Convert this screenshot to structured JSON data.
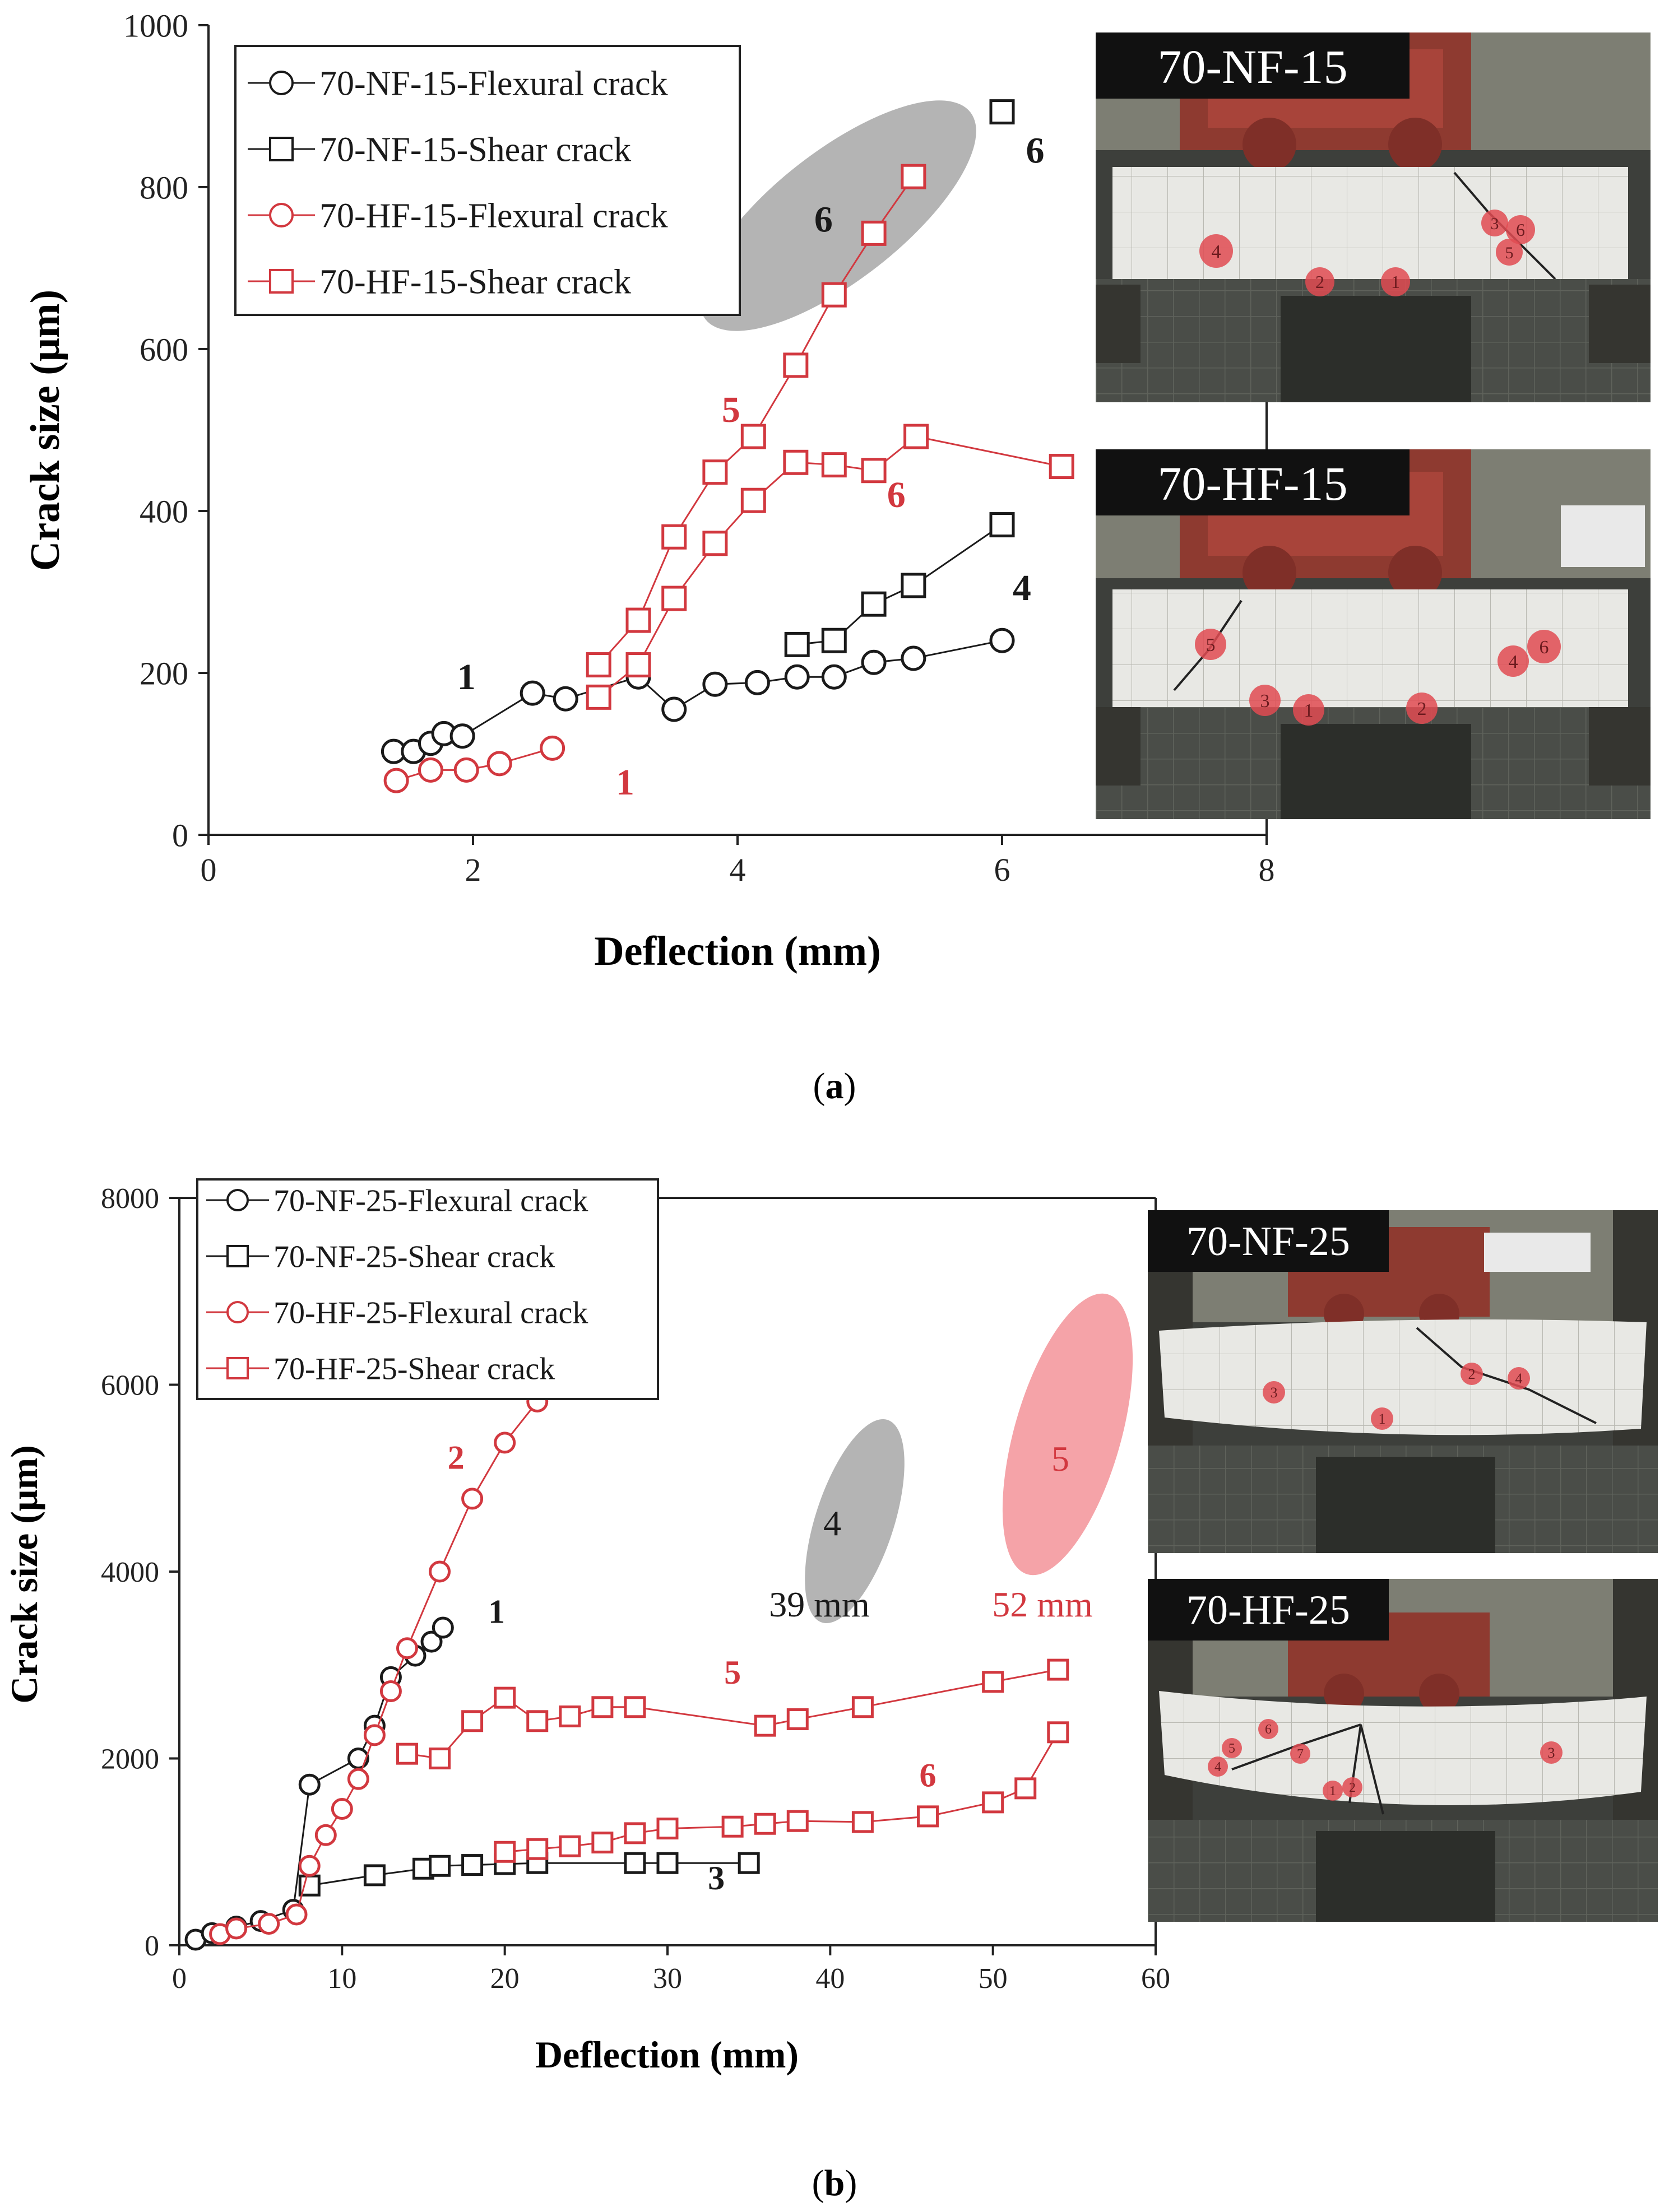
{
  "figure": {
    "panels": [
      {
        "caption": "(a)",
        "caption_letter": "a",
        "chart_title": "",
        "xlabel": "Deflection (mm)",
        "ylabel": "Crack size (μm)",
        "xlim": [
          0,
          8
        ],
        "ylim": [
          0,
          1000
        ],
        "xticks": [
          0,
          2,
          4,
          6,
          8
        ],
        "yticks": [
          0,
          200,
          400,
          600,
          800,
          1000
        ],
        "photos": [
          {
            "label": "70-NF-15",
            "markers": [
              {
                "text": "4",
                "type": "circle"
              },
              {
                "text": "2",
                "type": "circle"
              },
              {
                "text": "1",
                "type": "circle"
              },
              {
                "text": "3",
                "type": "circle"
              },
              {
                "text": "6",
                "type": "circle"
              },
              {
                "text": "5",
                "type": "circle"
              }
            ]
          },
          {
            "label": "70-HF-15",
            "markers": [
              {
                "text": "5",
                "type": "circle"
              },
              {
                "text": "3",
                "type": "circle"
              },
              {
                "text": "1",
                "type": "circle"
              },
              {
                "text": "2",
                "type": "circle"
              },
              {
                "text": "4",
                "type": "circle"
              },
              {
                "text": "6",
                "type": "circle"
              }
            ]
          }
        ]
      },
      {
        "caption": "(b)",
        "caption_letter": "b",
        "chart_title": "",
        "xlabel": "Deflection (mm)",
        "ylabel": "Crack size (μm)",
        "xlim": [
          0,
          60
        ],
        "ylim": [
          0,
          8000
        ],
        "xticks": [
          0,
          10,
          20,
          30,
          40,
          50,
          60
        ],
        "yticks": [
          0,
          2000,
          4000,
          6000,
          8000
        ],
        "photos": [
          {
            "label": "70-NF-25",
            "markers": [
              {
                "text": "3"
              },
              {
                "text": "2"
              },
              {
                "text": "4"
              },
              {
                "text": "1"
              }
            ]
          },
          {
            "label": "70-HF-25",
            "markers": [
              {
                "text": "6"
              },
              {
                "text": "5"
              },
              {
                "text": "4"
              },
              {
                "text": "7"
              },
              {
                "text": "1"
              },
              {
                "text": "2"
              },
              {
                "text": "3"
              }
            ]
          }
        ]
      }
    ]
  },
  "colors": {
    "black_series": "#1a1a1a",
    "red_series": "#d2383f",
    "gray_ellipse": "#b4b4b4",
    "pink_ellipse": "#f5a3a8",
    "photo_label_bg": "#111111"
  },
  "chart_data": [
    {
      "type": "line",
      "title": "",
      "xlabel": "Deflection (mm)",
      "ylabel": "Crack size (μm)",
      "xlim": [
        0,
        8
      ],
      "ylim": [
        0,
        1000
      ],
      "legend_position": "top-left",
      "series": [
        {
          "name": "70-NF-15-Flexural crack",
          "color": "black",
          "marker": "circle",
          "x": [
            1.4,
            1.55,
            1.68,
            1.78,
            1.92,
            2.45,
            2.7,
            3.25,
            3.52,
            3.83,
            4.15,
            4.45,
            4.73,
            5.03,
            5.33,
            6.0
          ],
          "y": [
            103,
            103,
            113,
            125,
            122,
            175,
            168,
            195,
            155,
            186,
            188,
            195,
            195,
            213,
            218,
            240
          ]
        },
        {
          "name": "70-NF-15-Shear crack",
          "color": "black",
          "marker": "square",
          "x": [
            4.45,
            4.73,
            5.03,
            5.33,
            6.0
          ],
          "y": [
            235,
            240,
            285,
            308,
            383
          ]
        },
        {
          "name": "70-HF-15-Flexural crack",
          "color": "red",
          "marker": "circle",
          "x": [
            1.42,
            1.68,
            1.95,
            2.2,
            2.6
          ],
          "y": [
            67,
            80,
            80,
            88,
            107
          ]
        },
        {
          "name": "70-HF-15-Shear crack",
          "color": "red",
          "marker": "square",
          "x": [
            2.95,
            3.25,
            3.52,
            3.83,
            4.12,
            4.44,
            4.73,
            5.03,
            5.33
          ],
          "y": [
            210,
            265,
            368,
            448,
            492,
            580,
            667,
            743,
            813
          ]
        },
        {
          "name": "70-HF-15-Shear crack (second crack)",
          "legend": false,
          "color": "red",
          "marker": "square",
          "x": [
            2.95,
            3.25,
            3.52,
            3.83,
            4.12,
            4.44,
            4.73,
            5.03,
            5.35,
            6.45
          ],
          "y": [
            170,
            210,
            292,
            360,
            413,
            460,
            457,
            450,
            492,
            455
          ]
        },
        {
          "name": "70-NF-15 final crack",
          "legend": false,
          "color": "black",
          "marker": "square",
          "x": [
            6.0
          ],
          "y": [
            893
          ]
        }
      ],
      "annotations": [
        {
          "text": "1",
          "color": "black",
          "x": 1.95,
          "y": 180
        },
        {
          "text": "1",
          "color": "red",
          "x": 3.15,
          "y": 50
        },
        {
          "text": "4",
          "color": "black",
          "x": 6.15,
          "y": 290
        },
        {
          "text": "5",
          "color": "red",
          "x": 3.95,
          "y": 510
        },
        {
          "text": "6",
          "color": "red",
          "x": 5.2,
          "y": 405
        },
        {
          "text": "6",
          "color": "black",
          "x": 4.65,
          "y": 745
        },
        {
          "text": "6",
          "color": "black",
          "x": 6.25,
          "y": 830
        }
      ],
      "highlight": {
        "type": "ellipse",
        "color": "gray",
        "center_x": 4.75,
        "center_y": 735,
        "label": "6"
      }
    },
    {
      "type": "line",
      "title": "",
      "xlabel": "Deflection (mm)",
      "ylabel": "Crack size (μm)",
      "xlim": [
        0,
        60
      ],
      "ylim": [
        0,
        8000
      ],
      "legend_position": "top-left",
      "series": [
        {
          "name": "70-NF-25-Flexural crack",
          "color": "black",
          "marker": "circle",
          "x": [
            1,
            2,
            3.5,
            5,
            7,
            8,
            11,
            12,
            13,
            14.5,
            15.5,
            16.2
          ],
          "y": [
            60,
            130,
            200,
            260,
            380,
            1720,
            2000,
            2350,
            2870,
            3100,
            3250,
            3400
          ]
        },
        {
          "name": "70-NF-25-Shear crack",
          "color": "black",
          "marker": "square",
          "x": [
            8,
            12,
            15,
            16,
            18,
            20,
            22,
            28,
            30,
            35
          ],
          "y": [
            640,
            750,
            820,
            850,
            860,
            870,
            880,
            880,
            880,
            880
          ]
        },
        {
          "name": "70-HF-25-Flexural crack",
          "color": "red",
          "marker": "circle",
          "x": [
            2.5,
            3.5,
            5.5,
            7.2,
            8,
            9,
            10,
            11,
            12,
            13,
            14,
            16,
            18,
            20,
            22
          ],
          "y": [
            120,
            180,
            230,
            330,
            850,
            1180,
            1460,
            1780,
            2250,
            2720,
            3180,
            4000,
            4780,
            5380,
            5820
          ]
        },
        {
          "name": "70-HF-25-Shear crack",
          "color": "red",
          "marker": "square",
          "x": [
            14,
            16,
            18,
            20,
            22,
            24,
            26,
            28,
            36,
            38,
            42,
            50,
            54
          ],
          "y": [
            2050,
            2000,
            2400,
            2650,
            2400,
            2450,
            2550,
            2550,
            2350,
            2420,
            2550,
            2820,
            2950
          ]
        },
        {
          "name": "70-HF-25-Shear crack (second crack)",
          "legend": false,
          "color": "red",
          "marker": "square",
          "x": [
            20,
            22,
            24,
            26,
            28,
            30,
            34,
            36,
            38,
            42,
            46,
            50,
            52,
            54
          ],
          "y": [
            1000,
            1030,
            1060,
            1100,
            1200,
            1250,
            1270,
            1300,
            1330,
            1320,
            1380,
            1530,
            1680,
            2280
          ]
        }
      ],
      "annotations": [
        {
          "text": "1",
          "color": "black",
          "x": 19.5,
          "y": 3450
        },
        {
          "text": "2",
          "color": "red",
          "x": 17,
          "y": 5100
        },
        {
          "text": "3",
          "color": "black",
          "x": 33,
          "y": 600
        },
        {
          "text": "5",
          "color": "red",
          "x": 34,
          "y": 2800
        },
        {
          "text": "6",
          "color": "red",
          "x": 46,
          "y": 1700
        }
      ],
      "highlights": [
        {
          "type": "ellipse",
          "color": "gray",
          "center_x": 41,
          "center_y": 4520,
          "label": "4",
          "note": "39 mm"
        },
        {
          "type": "ellipse",
          "color": "pink",
          "center_x": 54.2,
          "center_y": 5300,
          "label": "5",
          "note": "52 mm"
        }
      ]
    }
  ]
}
